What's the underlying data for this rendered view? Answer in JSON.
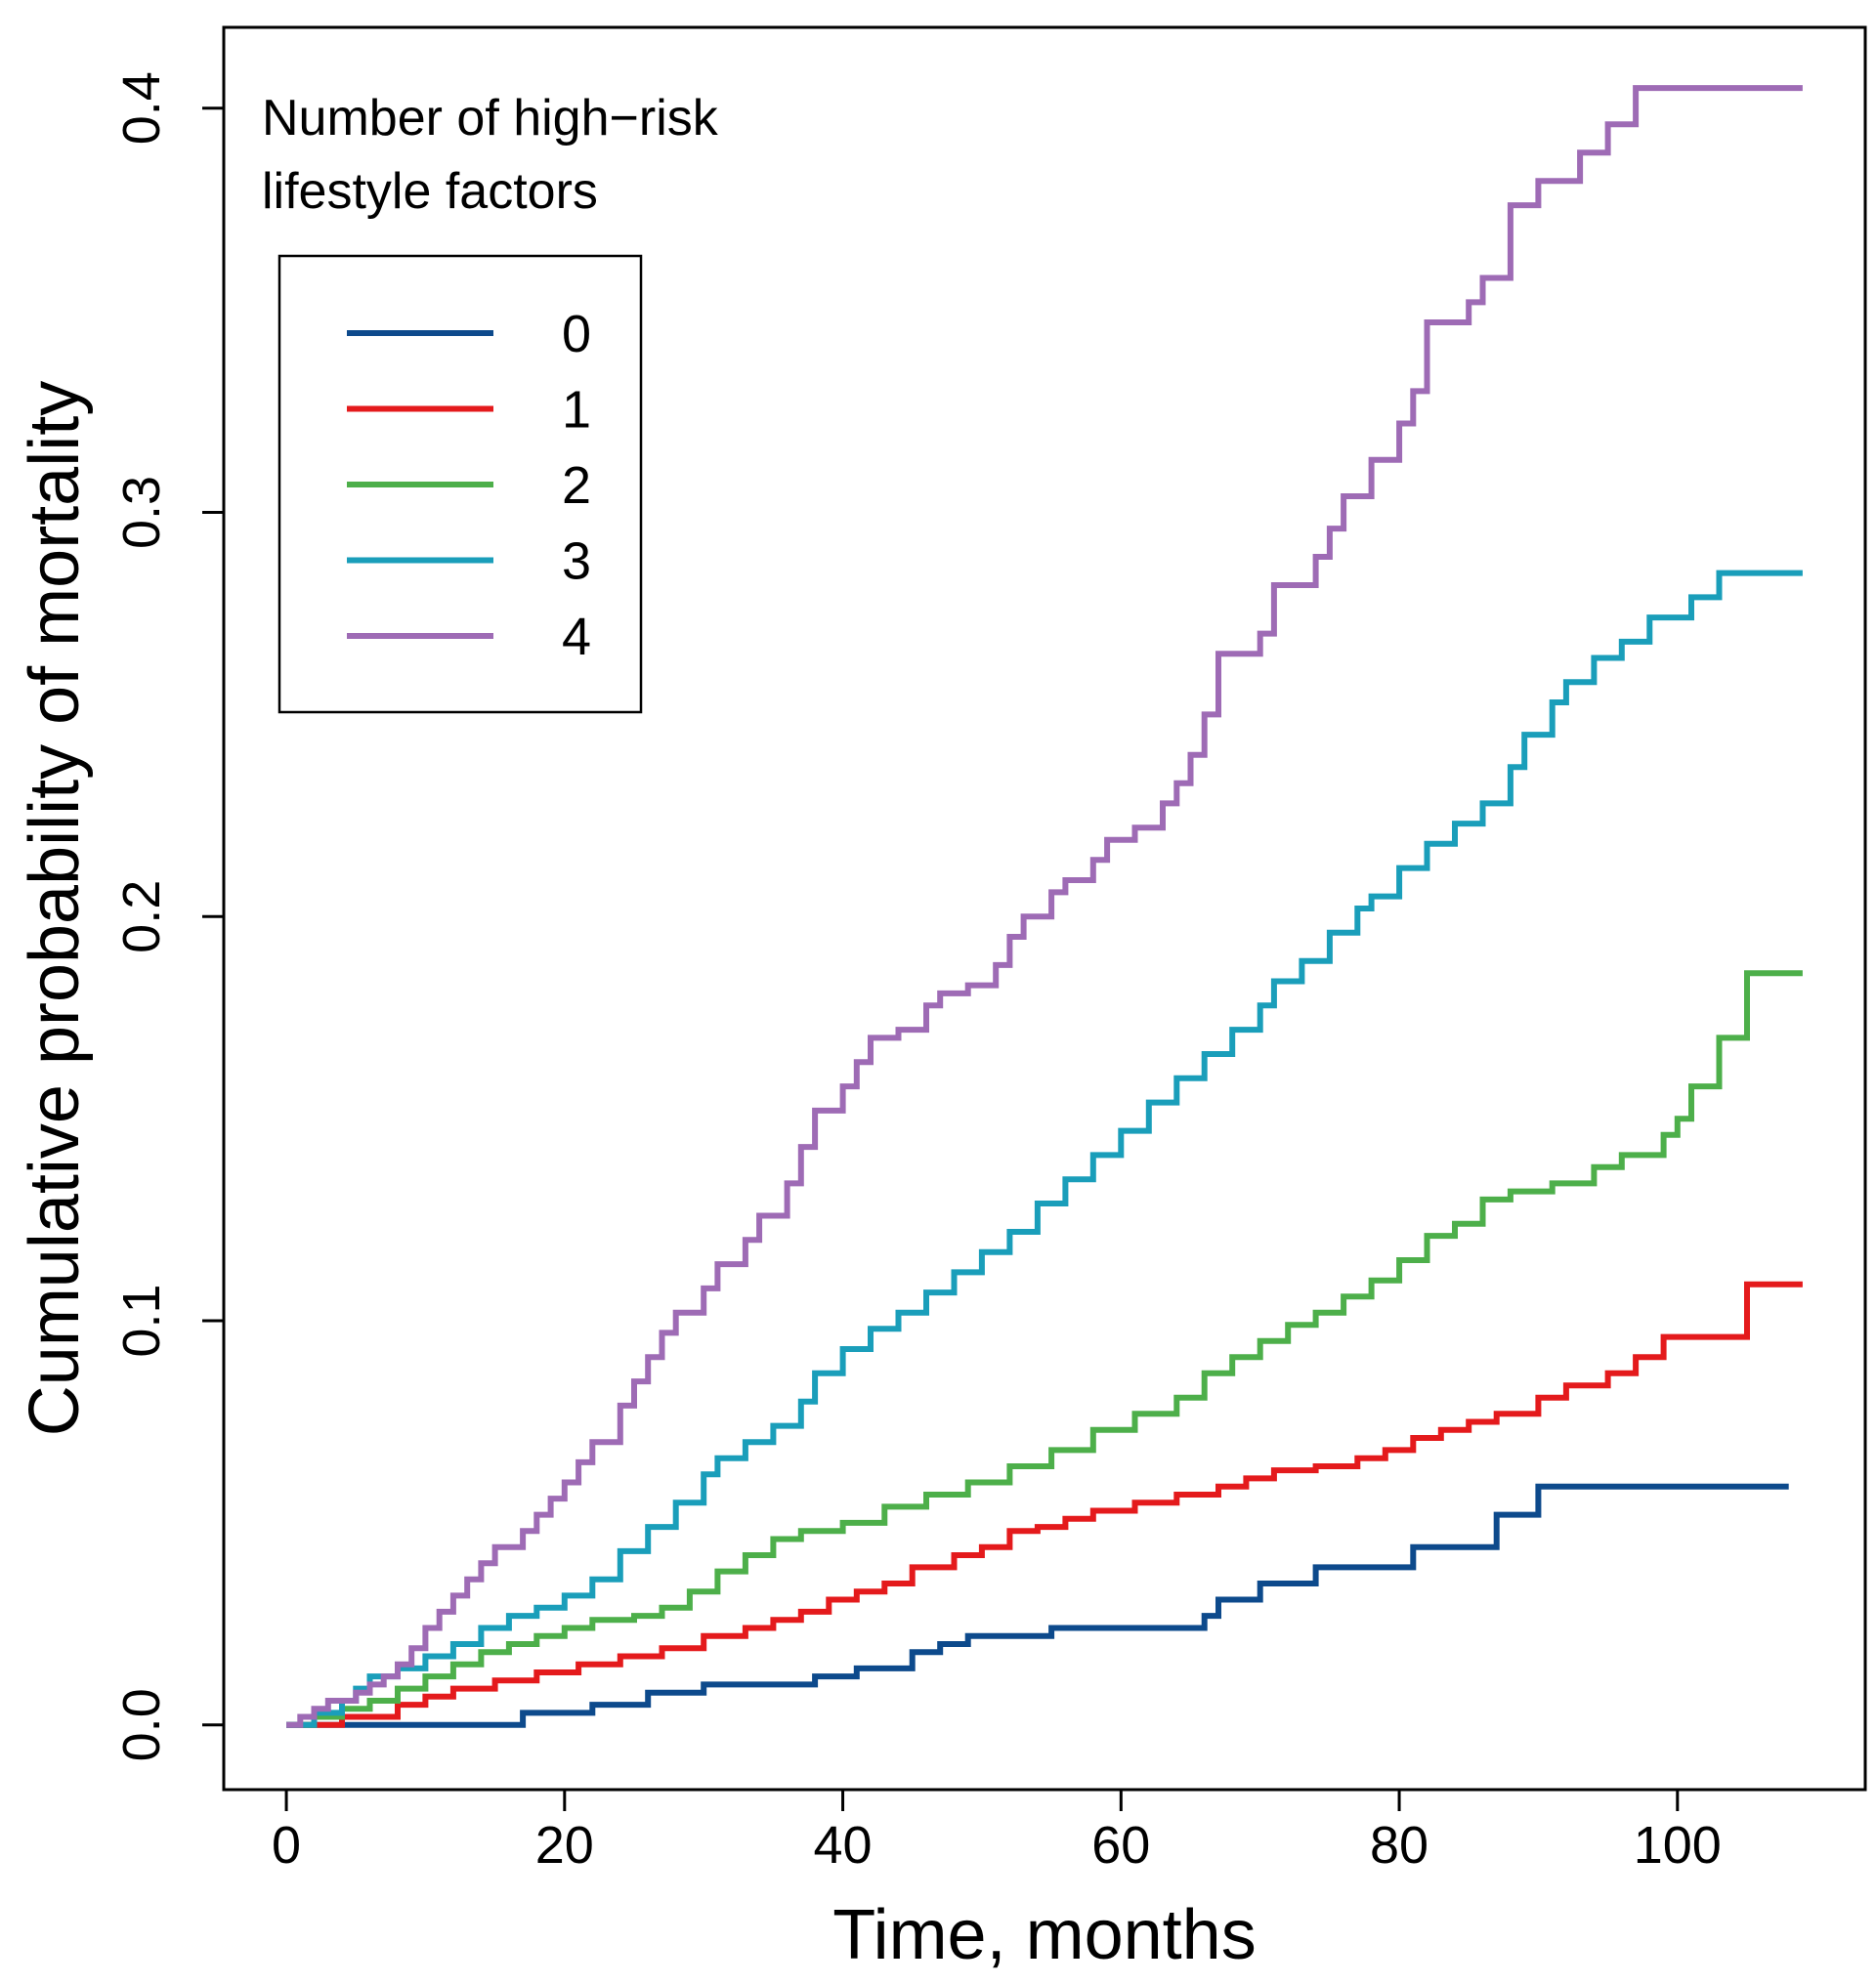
{
  "chart_data": {
    "type": "line",
    "title": "",
    "xlabel": "Time, months",
    "ylabel": "Cumulative probability of mortality",
    "xlim": [
      -4.5,
      113.5
    ],
    "ylim": [
      -0.016,
      0.42
    ],
    "xticks": [
      0,
      20,
      40,
      60,
      80,
      100
    ],
    "xtick_labels": [
      "0",
      "20",
      "40",
      "60",
      "80",
      "100"
    ],
    "yticks": [
      0.0,
      0.1,
      0.2,
      0.3,
      0.4
    ],
    "ytick_labels": [
      "0.0",
      "0.1",
      "0.2",
      "0.3",
      "0.4"
    ],
    "grid": false,
    "legend": {
      "title_lines": [
        "Number of high−risk",
        "lifestyle factors"
      ],
      "position": "top-left"
    },
    "series": [
      {
        "name": "0",
        "color": "#0d4a8c",
        "steps": [
          [
            0,
            0
          ],
          [
            17,
            0.003
          ],
          [
            22,
            0.005
          ],
          [
            26,
            0.008
          ],
          [
            30,
            0.01
          ],
          [
            38,
            0.012
          ],
          [
            41,
            0.014
          ],
          [
            45,
            0.018
          ],
          [
            47,
            0.02
          ],
          [
            49,
            0.022
          ],
          [
            55,
            0.024
          ],
          [
            66,
            0.027
          ],
          [
            67,
            0.031
          ],
          [
            70,
            0.035
          ],
          [
            74,
            0.039
          ],
          [
            81,
            0.044
          ],
          [
            87,
            0.052
          ],
          [
            90,
            0.059
          ],
          [
            108,
            0.059
          ]
        ]
      },
      {
        "name": "1",
        "color": "#e41a1c",
        "steps": [
          [
            0,
            0
          ],
          [
            4,
            0.002
          ],
          [
            8,
            0.005
          ],
          [
            10,
            0.007
          ],
          [
            12,
            0.009
          ],
          [
            15,
            0.011
          ],
          [
            18,
            0.013
          ],
          [
            21,
            0.015
          ],
          [
            24,
            0.017
          ],
          [
            27,
            0.019
          ],
          [
            30,
            0.022
          ],
          [
            33,
            0.024
          ],
          [
            35,
            0.026
          ],
          [
            37,
            0.028
          ],
          [
            39,
            0.031
          ],
          [
            41,
            0.033
          ],
          [
            43,
            0.035
          ],
          [
            45,
            0.039
          ],
          [
            48,
            0.042
          ],
          [
            50,
            0.044
          ],
          [
            52,
            0.048
          ],
          [
            54,
            0.049
          ],
          [
            56,
            0.051
          ],
          [
            58,
            0.053
          ],
          [
            61,
            0.055
          ],
          [
            64,
            0.057
          ],
          [
            67,
            0.059
          ],
          [
            69,
            0.061
          ],
          [
            71,
            0.063
          ],
          [
            74,
            0.064
          ],
          [
            77,
            0.066
          ],
          [
            79,
            0.068
          ],
          [
            81,
            0.071
          ],
          [
            83,
            0.073
          ],
          [
            85,
            0.075
          ],
          [
            87,
            0.077
          ],
          [
            90,
            0.081
          ],
          [
            92,
            0.084
          ],
          [
            95,
            0.087
          ],
          [
            97,
            0.091
          ],
          [
            99,
            0.096
          ],
          [
            102,
            0.096
          ],
          [
            105,
            0.109
          ],
          [
            109,
            0.109
          ]
        ]
      },
      {
        "name": "2",
        "color": "#4daf4a",
        "steps": [
          [
            0,
            0
          ],
          [
            2,
            0.002
          ],
          [
            4,
            0.004
          ],
          [
            6,
            0.006
          ],
          [
            8,
            0.009
          ],
          [
            10,
            0.012
          ],
          [
            12,
            0.015
          ],
          [
            14,
            0.018
          ],
          [
            16,
            0.02
          ],
          [
            18,
            0.022
          ],
          [
            20,
            0.024
          ],
          [
            22,
            0.026
          ],
          [
            25,
            0.027
          ],
          [
            27,
            0.029
          ],
          [
            29,
            0.033
          ],
          [
            31,
            0.038
          ],
          [
            33,
            0.042
          ],
          [
            35,
            0.046
          ],
          [
            37,
            0.048
          ],
          [
            40,
            0.05
          ],
          [
            43,
            0.054
          ],
          [
            46,
            0.057
          ],
          [
            49,
            0.06
          ],
          [
            52,
            0.064
          ],
          [
            55,
            0.068
          ],
          [
            58,
            0.073
          ],
          [
            61,
            0.077
          ],
          [
            64,
            0.081
          ],
          [
            66,
            0.087
          ],
          [
            68,
            0.091
          ],
          [
            70,
            0.095
          ],
          [
            72,
            0.099
          ],
          [
            74,
            0.102
          ],
          [
            76,
            0.106
          ],
          [
            78,
            0.11
          ],
          [
            80,
            0.115
          ],
          [
            82,
            0.121
          ],
          [
            84,
            0.124
          ],
          [
            86,
            0.13
          ],
          [
            88,
            0.132
          ],
          [
            91,
            0.134
          ],
          [
            94,
            0.138
          ],
          [
            96,
            0.141
          ],
          [
            99,
            0.146
          ],
          [
            100,
            0.15
          ],
          [
            101,
            0.158
          ],
          [
            103,
            0.17
          ],
          [
            105,
            0.186
          ],
          [
            109,
            0.186
          ]
        ]
      },
      {
        "name": "3",
        "color": "#1a9eba",
        "steps": [
          [
            0,
            0
          ],
          [
            2,
            0.003
          ],
          [
            4,
            0.006
          ],
          [
            5,
            0.009
          ],
          [
            6,
            0.012
          ],
          [
            8,
            0.014
          ],
          [
            10,
            0.017
          ],
          [
            12,
            0.02
          ],
          [
            14,
            0.024
          ],
          [
            16,
            0.027
          ],
          [
            18,
            0.029
          ],
          [
            20,
            0.032
          ],
          [
            22,
            0.036
          ],
          [
            24,
            0.043
          ],
          [
            26,
            0.049
          ],
          [
            28,
            0.055
          ],
          [
            30,
            0.062
          ],
          [
            31,
            0.066
          ],
          [
            33,
            0.07
          ],
          [
            35,
            0.074
          ],
          [
            37,
            0.08
          ],
          [
            38,
            0.087
          ],
          [
            40,
            0.093
          ],
          [
            42,
            0.098
          ],
          [
            44,
            0.102
          ],
          [
            46,
            0.107
          ],
          [
            48,
            0.112
          ],
          [
            50,
            0.117
          ],
          [
            52,
            0.122
          ],
          [
            54,
            0.129
          ],
          [
            56,
            0.135
          ],
          [
            58,
            0.141
          ],
          [
            60,
            0.147
          ],
          [
            62,
            0.154
          ],
          [
            64,
            0.16
          ],
          [
            66,
            0.166
          ],
          [
            68,
            0.172
          ],
          [
            70,
            0.178
          ],
          [
            71,
            0.184
          ],
          [
            73,
            0.189
          ],
          [
            75,
            0.196
          ],
          [
            77,
            0.202
          ],
          [
            78,
            0.205
          ],
          [
            80,
            0.212
          ],
          [
            82,
            0.218
          ],
          [
            84,
            0.223
          ],
          [
            86,
            0.228
          ],
          [
            88,
            0.237
          ],
          [
            89,
            0.245
          ],
          [
            91,
            0.253
          ],
          [
            92,
            0.258
          ],
          [
            94,
            0.264
          ],
          [
            96,
            0.268
          ],
          [
            98,
            0.274
          ],
          [
            101,
            0.279
          ],
          [
            103,
            0.285
          ],
          [
            109,
            0.285
          ]
        ]
      },
      {
        "name": "4",
        "color": "#9e6bb5",
        "steps": [
          [
            0,
            0
          ],
          [
            1,
            0.002
          ],
          [
            2,
            0.004
          ],
          [
            3,
            0.006
          ],
          [
            5,
            0.008
          ],
          [
            6,
            0.01
          ],
          [
            7,
            0.012
          ],
          [
            8,
            0.015
          ],
          [
            9,
            0.019
          ],
          [
            10,
            0.024
          ],
          [
            11,
            0.028
          ],
          [
            12,
            0.032
          ],
          [
            13,
            0.036
          ],
          [
            14,
            0.04
          ],
          [
            15,
            0.044
          ],
          [
            17,
            0.048
          ],
          [
            18,
            0.052
          ],
          [
            19,
            0.056
          ],
          [
            20,
            0.06
          ],
          [
            21,
            0.065
          ],
          [
            22,
            0.07
          ],
          [
            24,
            0.079
          ],
          [
            25,
            0.085
          ],
          [
            26,
            0.091
          ],
          [
            27,
            0.097
          ],
          [
            28,
            0.102
          ],
          [
            30,
            0.108
          ],
          [
            31,
            0.114
          ],
          [
            33,
            0.12
          ],
          [
            34,
            0.126
          ],
          [
            36,
            0.134
          ],
          [
            37,
            0.143
          ],
          [
            38,
            0.152
          ],
          [
            40,
            0.158
          ],
          [
            41,
            0.164
          ],
          [
            42,
            0.17
          ],
          [
            44,
            0.172
          ],
          [
            46,
            0.178
          ],
          [
            47,
            0.181
          ],
          [
            49,
            0.183
          ],
          [
            51,
            0.188
          ],
          [
            52,
            0.195
          ],
          [
            53,
            0.2
          ],
          [
            55,
            0.206
          ],
          [
            56,
            0.209
          ],
          [
            58,
            0.214
          ],
          [
            59,
            0.219
          ],
          [
            61,
            0.222
          ],
          [
            63,
            0.228
          ],
          [
            64,
            0.233
          ],
          [
            65,
            0.24
          ],
          [
            66,
            0.25
          ],
          [
            67,
            0.265
          ],
          [
            70,
            0.27
          ],
          [
            71,
            0.282
          ],
          [
            74,
            0.289
          ],
          [
            75,
            0.296
          ],
          [
            76,
            0.304
          ],
          [
            78,
            0.313
          ],
          [
            80,
            0.322
          ],
          [
            81,
            0.33
          ],
          [
            82,
            0.347
          ],
          [
            85,
            0.352
          ],
          [
            86,
            0.358
          ],
          [
            88,
            0.376
          ],
          [
            90,
            0.382
          ],
          [
            93,
            0.389
          ],
          [
            95,
            0.396
          ],
          [
            97,
            0.405
          ],
          [
            109,
            0.405
          ]
        ]
      }
    ]
  }
}
